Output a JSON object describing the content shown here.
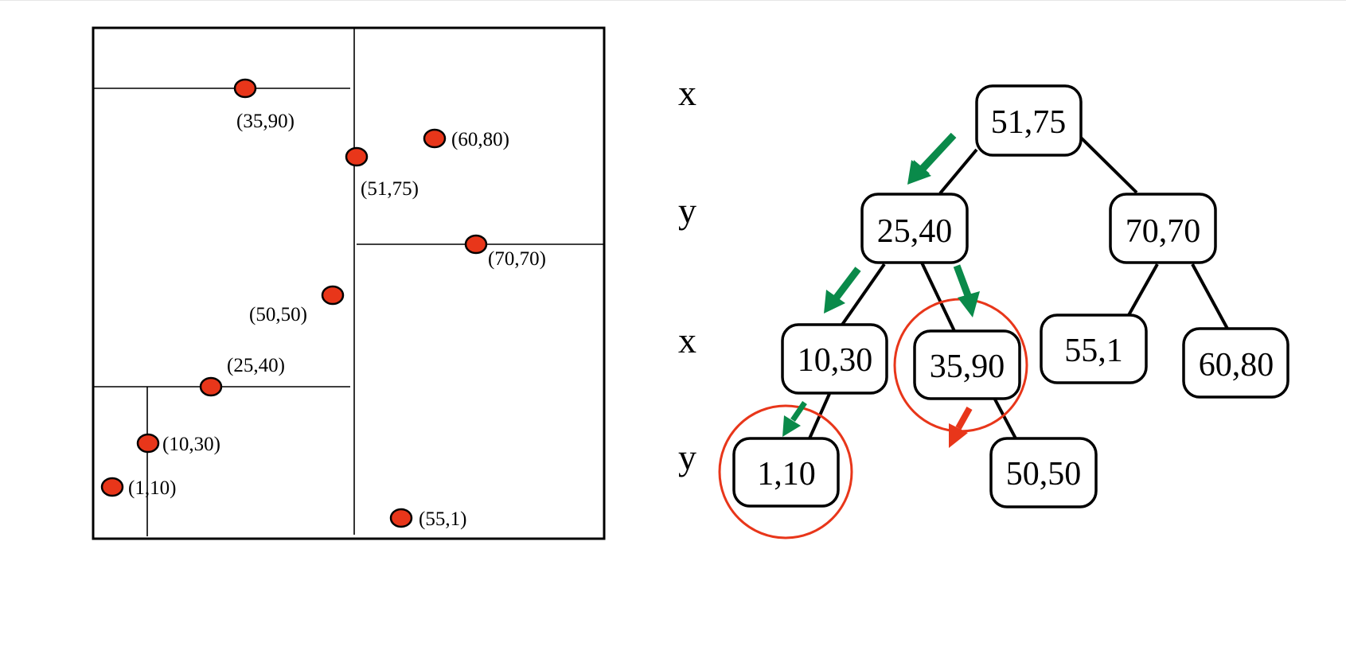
{
  "colors": {
    "point_fill": "#e8361a",
    "highlight_red": "#e8361a",
    "path_green": "#0a8a4a",
    "line": "#000000"
  },
  "plane": {
    "points": [
      {
        "id": "p3590",
        "label": "(35,90)"
      },
      {
        "id": "p6080",
        "label": "(60,80)"
      },
      {
        "id": "p5175",
        "label": "(51,75)"
      },
      {
        "id": "p7070",
        "label": "(70,70)"
      },
      {
        "id": "p5050",
        "label": "(50,50)"
      },
      {
        "id": "p2540",
        "label": "(25,40)"
      },
      {
        "id": "p1030",
        "label": "(10,30)"
      },
      {
        "id": "p110",
        "label": "(1,10)"
      },
      {
        "id": "p551",
        "label": "(55,1)"
      }
    ]
  },
  "tree": {
    "levels": [
      "x",
      "y",
      "x",
      "y"
    ],
    "nodes": [
      {
        "id": "n5175",
        "label": "51,75"
      },
      {
        "id": "n2540",
        "label": "25,40"
      },
      {
        "id": "n7070",
        "label": "70,70"
      },
      {
        "id": "n1030",
        "label": "10,30"
      },
      {
        "id": "n3590",
        "label": "35,90"
      },
      {
        "id": "n551",
        "label": "55,1"
      },
      {
        "id": "n6080",
        "label": "60,80"
      },
      {
        "id": "n110",
        "label": "1,10"
      },
      {
        "id": "n5050",
        "label": "50,50"
      }
    ]
  }
}
